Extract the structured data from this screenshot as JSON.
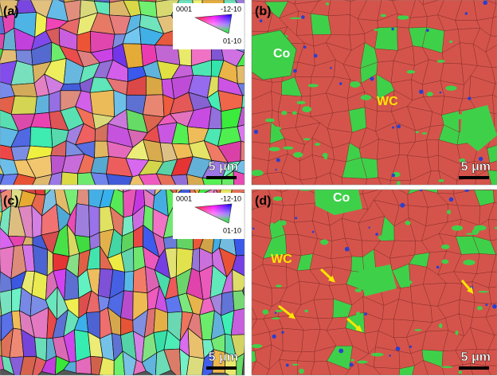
{
  "panels": [
    {
      "label": "(a)",
      "scale_bar": "5 μm",
      "legend": {
        "top_left": "0001",
        "top_right": "-12-10",
        "bottom": "01-10"
      }
    },
    {
      "label": "(b)",
      "scale_bar": "5 μm",
      "annotations": [
        "Co",
        "WC"
      ]
    },
    {
      "label": "(c)",
      "scale_bar": "5 μm",
      "legend": {
        "top_left": "0001",
        "top_right": "-12-10",
        "bottom": "01-10"
      }
    },
    {
      "label": "(d)",
      "scale_bar": "5 μm",
      "annotations": [
        "Co",
        "WC"
      ]
    }
  ]
}
